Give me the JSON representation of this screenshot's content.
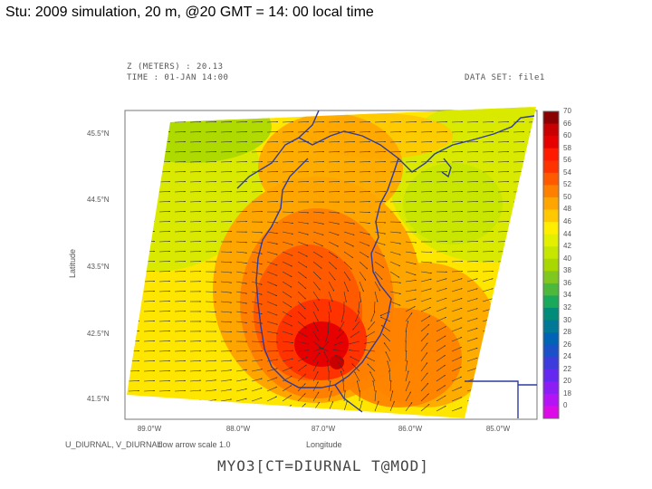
{
  "slide": {
    "title": "Stu: 2009 simulation, 20 m, @20 GMT = 14: 00 local time"
  },
  "plot_header": {
    "line1": "Z (METERS) : 20.13",
    "line2": "TIME : 01-JAN 14:00",
    "dataset": "DATA SET: file1"
  },
  "axes": {
    "ylabel": "Latitude",
    "xlabel": "Longitude",
    "yticks": [
      "45.5°N",
      "44.5°N",
      "43.5°N",
      "42.5°N",
      "41.5°N"
    ],
    "xticks": [
      "89.0°W",
      "88.0°W",
      "87.0°W",
      "86.0°W",
      "85.0°W"
    ]
  },
  "colorbar": {
    "labels": [
      "70",
      "66",
      "60",
      "58",
      "56",
      "54",
      "52",
      "50",
      "48",
      "46",
      "44",
      "42",
      "40",
      "38",
      "36",
      "34",
      "32",
      "30",
      "28",
      "26",
      "24",
      "22",
      "20",
      "18",
      "0"
    ],
    "colors": [
      "#8b0000",
      "#c80000",
      "#e60000",
      "#ff1a00",
      "#ff3300",
      "#ff5a00",
      "#ff8000",
      "#ffa500",
      "#ffc800",
      "#ffee00",
      "#e2f000",
      "#c6e600",
      "#a8d800",
      "#80c820",
      "#4cb83c",
      "#1aa85a",
      "#008c78",
      "#007896",
      "#0064b4",
      "#1a50c8",
      "#3c3cdc",
      "#6428f0",
      "#8c1ef5",
      "#b414f5",
      "#dc0ae6"
    ]
  },
  "footer": {
    "left_label": "U_DIURNAL, V_DIURNAL",
    "arrow_scale": "flow arrow scale 1.0",
    "model": "MYO3[CT=DIURNAL T@MOD]"
  }
}
